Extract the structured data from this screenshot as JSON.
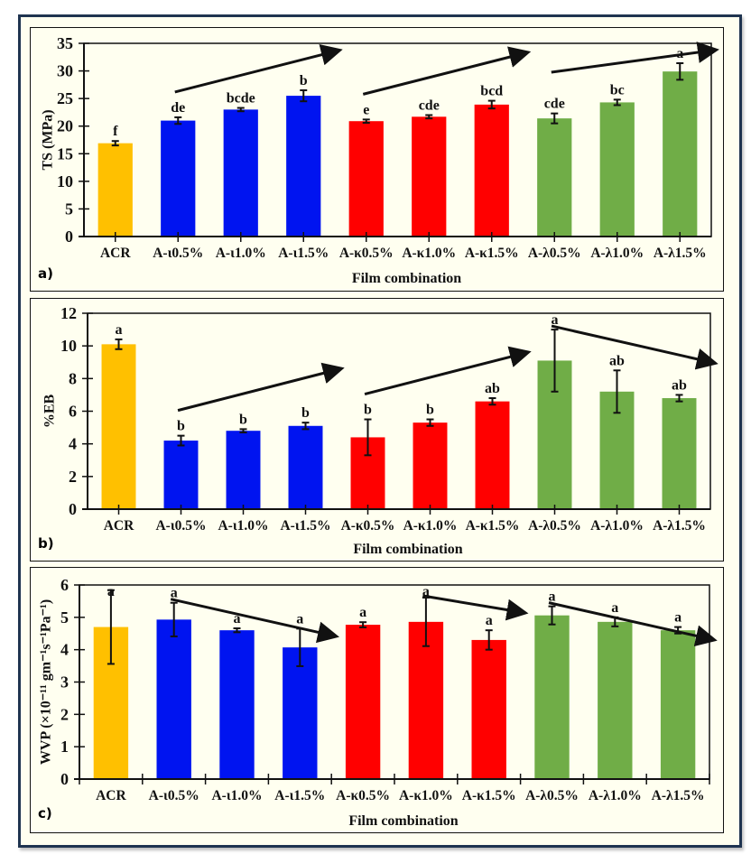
{
  "figure": {
    "panels": [
      {
        "letter": "a)"
      },
      {
        "letter": "b)"
      },
      {
        "letter": "c)"
      }
    ]
  },
  "colors": {
    "control": "#ffc000",
    "iota": "#0014f0",
    "kappa": "#ff0000",
    "lambda": "#70ad47",
    "background": "#fffff0",
    "frame": "#1f3450"
  },
  "chart_data": [
    {
      "type": "bar",
      "panel": "a)",
      "title": "",
      "xlabel": "Film combination",
      "ylabel": "TS (MPa)",
      "ylim": [
        0,
        35
      ],
      "yticks": [
        0,
        5,
        10,
        15,
        20,
        25,
        30,
        35
      ],
      "categories": [
        "ACR",
        "A-ι0.5%",
        "A-ι1.0%",
        "A-ι1.5%",
        "A-κ0.5%",
        "A-κ1.0%",
        "A-κ1.5%",
        "A-λ0.5%",
        "A-λ1.0%",
        "A-λ1.5%"
      ],
      "values": [
        16.9,
        21.0,
        23.0,
        25.5,
        20.9,
        21.7,
        23.9,
        21.4,
        24.3,
        29.9
      ],
      "errors": [
        0.4,
        0.6,
        0.3,
        1.0,
        0.3,
        0.3,
        0.7,
        0.9,
        0.5,
        1.5
      ],
      "group_colors": [
        "control",
        "iota",
        "iota",
        "iota",
        "kappa",
        "kappa",
        "kappa",
        "lambda",
        "lambda",
        "lambda"
      ],
      "letters": [
        "f",
        "de",
        "bcde",
        "b",
        "e",
        "cde",
        "bcd",
        "cde",
        "bc",
        "a"
      ],
      "trend_arrows": [
        {
          "from_category": 1,
          "to_category": 3,
          "direction": "up"
        },
        {
          "from_category": 4,
          "to_category": 6,
          "direction": "up"
        },
        {
          "from_category": 7,
          "to_category": 9,
          "direction": "up"
        }
      ],
      "tick_style": "centered",
      "grid": false
    },
    {
      "type": "bar",
      "panel": "b)",
      "title": "",
      "xlabel": "Film combination",
      "ylabel": "%EB",
      "ylim": [
        0,
        12
      ],
      "yticks": [
        0,
        2,
        4,
        6,
        8,
        10,
        12
      ],
      "categories": [
        "ACR",
        "A-ι0.5%",
        "A-ι1.0%",
        "A-ι1.5%",
        "A-κ0.5%",
        "A-κ1.0%",
        "A-κ1.5%",
        "A-λ0.5%",
        "A-λ1.0%",
        "A-λ1.5%"
      ],
      "values": [
        10.1,
        4.2,
        4.8,
        5.1,
        4.4,
        5.3,
        6.6,
        9.1,
        7.2,
        6.8
      ],
      "errors": [
        0.3,
        0.3,
        0.1,
        0.2,
        1.1,
        0.2,
        0.2,
        1.9,
        1.3,
        0.2
      ],
      "group_colors": [
        "control",
        "iota",
        "iota",
        "iota",
        "kappa",
        "kappa",
        "kappa",
        "lambda",
        "lambda",
        "lambda"
      ],
      "letters": [
        "a",
        "b",
        "b",
        "b",
        "b",
        "b",
        "ab",
        "a",
        "ab",
        "ab"
      ],
      "trend_arrows": [
        {
          "from_category": 1,
          "to_category": 3,
          "direction": "up"
        },
        {
          "from_category": 4,
          "to_category": 6,
          "direction": "up"
        },
        {
          "from_category": 7,
          "to_category": 9,
          "direction": "down"
        }
      ],
      "tick_style": "centered",
      "grid": false
    },
    {
      "type": "bar",
      "panel": "c)",
      "title": "",
      "xlabel": "Film combination",
      "ylabel": "WVP (×10⁻¹¹ gm⁻¹s⁻¹Pa⁻¹)",
      "ylim": [
        0,
        6
      ],
      "yticks": [
        0,
        1,
        2,
        3,
        4,
        5,
        6
      ],
      "categories": [
        "ACR",
        "A-ι0.5%",
        "A-ι1.0%",
        "A-ι1.5%",
        "A-κ0.5%",
        "A-κ1.0%",
        "A-κ1.5%",
        "A-λ0.5%",
        "A-λ1.0%",
        "A-λ1.5%"
      ],
      "values": [
        4.7,
        4.93,
        4.6,
        4.07,
        4.77,
        4.86,
        4.3,
        5.06,
        4.86,
        4.6
      ],
      "errors": [
        1.14,
        0.52,
        0.06,
        0.58,
        0.08,
        0.75,
        0.3,
        0.28,
        0.14,
        0.1
      ],
      "group_colors": [
        "control",
        "iota",
        "iota",
        "iota",
        "kappa",
        "kappa",
        "kappa",
        "lambda",
        "lambda",
        "lambda"
      ],
      "letters": [
        "a",
        "a",
        "a",
        "a",
        "a",
        "a",
        "a",
        "a",
        "a",
        "a"
      ],
      "trend_arrows": [
        {
          "from_category": 1,
          "to_category": 3,
          "direction": "down"
        },
        {
          "from_category": 5,
          "to_category": 6,
          "direction": "down"
        },
        {
          "from_category": 7,
          "to_category": 9,
          "direction": "down"
        }
      ],
      "tick_style": "between",
      "grid": false
    }
  ]
}
